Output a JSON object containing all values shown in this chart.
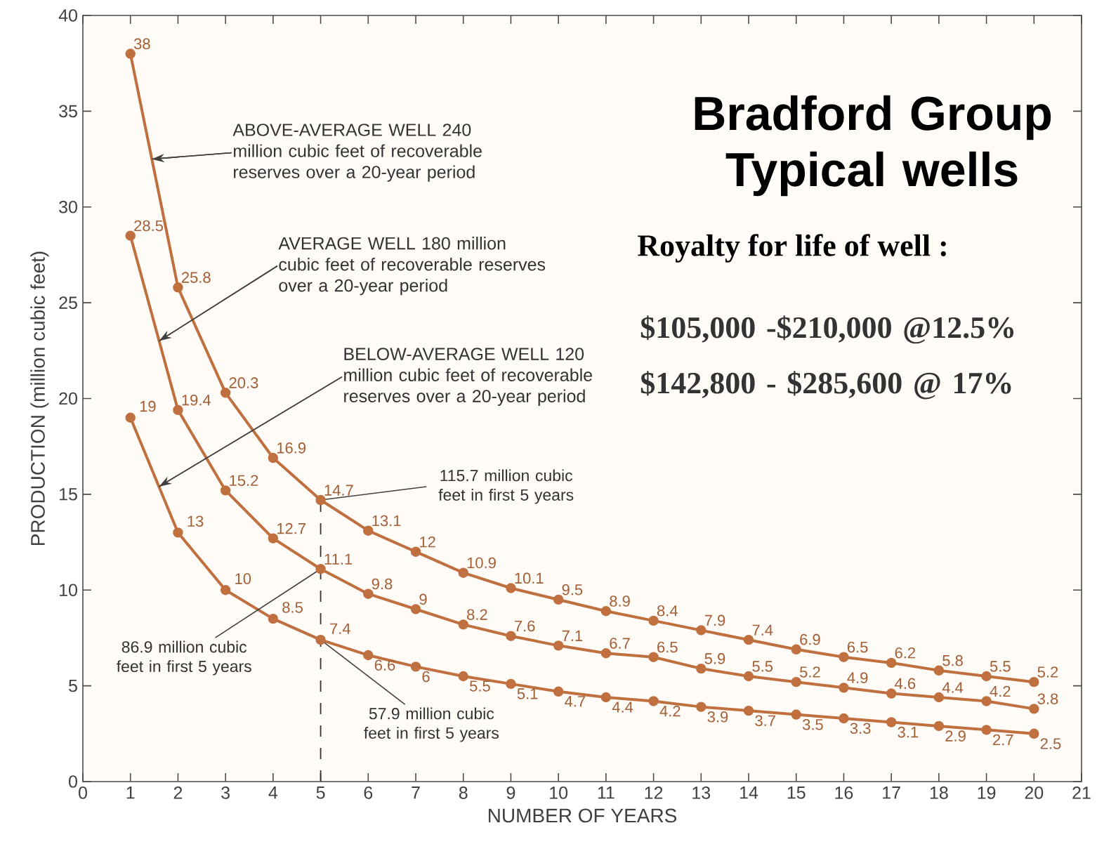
{
  "chart_data": {
    "type": "line",
    "title": "Bradford Group Typical wells",
    "subtitle": "Royalty for life of well :",
    "xlabel": "NUMBER OF YEARS",
    "ylabel": "PRODUCTION (million cubic feet)",
    "x": [
      1,
      2,
      3,
      4,
      5,
      6,
      7,
      8,
      9,
      10,
      11,
      12,
      13,
      14,
      15,
      16,
      17,
      18,
      19,
      20
    ],
    "series": [
      {
        "color": "#c0703f",
        "values": [
          38,
          25.8,
          20.3,
          16.9,
          14.7,
          13.1,
          12,
          10.9,
          10.1,
          9.5,
          8.9,
          8.4,
          7.9,
          7.4,
          6.9,
          6.5,
          6.2,
          5.8,
          5.5,
          5.2
        ]
      },
      {
        "color": "#c0703f",
        "values": [
          28.5,
          19.4,
          15.2,
          12.7,
          11.1,
          9.8,
          9,
          8.2,
          7.6,
          7.1,
          6.7,
          6.5,
          5.9,
          5.5,
          5.2,
          4.9,
          4.6,
          4.4,
          4.2,
          3.8
        ]
      },
      {
        "color": "#c0703f",
        "values": [
          19,
          13,
          10,
          8.5,
          7.4,
          6.6,
          6,
          5.5,
          5.1,
          4.7,
          4.4,
          4.2,
          3.9,
          3.7,
          3.5,
          3.3,
          3.1,
          2.9,
          2.7,
          2.5
        ]
      }
    ],
    "xlim": [
      0,
      21
    ],
    "ylim": [
      0,
      40
    ],
    "xticks": [
      0,
      1,
      2,
      3,
      4,
      5,
      6,
      7,
      8,
      9,
      10,
      11,
      12,
      13,
      14,
      15,
      16,
      17,
      18,
      19,
      20,
      21
    ],
    "yticks": [
      0,
      5,
      10,
      15,
      20,
      25,
      30,
      35,
      40
    ],
    "marker": "circle",
    "line_style": "solid",
    "grid": false,
    "data_labels": true,
    "ref_lines": [
      {
        "axis": "x",
        "value": 5,
        "line_style": "dashed",
        "color": "#333333"
      }
    ],
    "annotations": [
      {
        "text": "ABOVE-AVERAGE WELL 240 million cubic feet of recoverable reserves over a 20-year period",
        "x": 1.45,
        "y": 32.5
      },
      {
        "text": "AVERAGE WELL 180 million cubic feet of recoverable reserves over a 20-year period",
        "x": 1.6,
        "y": 23
      },
      {
        "text": "BELOW-AVERAGE WELL 120 million cubic feet of recoverable reserves over a 20-year period",
        "x": 1.6,
        "y": 15.4
      },
      {
        "text": "115.7 million cubic feet in first 5 years",
        "x": 5,
        "y": 14.7
      },
      {
        "text": "86.9 million cubic feet in first 5 years",
        "x": 5,
        "y": 11.1
      },
      {
        "text": "57.9 million cubic feet in first 5 years",
        "x": 5,
        "y": 7.4
      },
      "$105,000 -$210,000 @12.5%",
      "$142,800 - $285,600 @ 17%"
    ]
  }
}
